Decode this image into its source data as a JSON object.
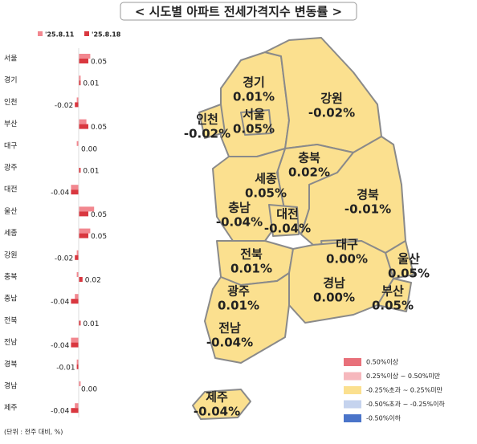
{
  "title": "< 시도별 아파트 전세가격지수 변동률 >",
  "chart_data": [
    {
      "type": "bar",
      "orientation": "horizontal",
      "categories": [
        "서울",
        "경기",
        "인천",
        "부산",
        "대구",
        "광주",
        "대전",
        "울산",
        "세종",
        "강원",
        "충북",
        "충남",
        "전북",
        "전남",
        "경북",
        "경남",
        "제주"
      ],
      "series": [
        {
          "name": "'25.8.11",
          "color": "#f2878f",
          "values": [
            0.06,
            0.01,
            -0.01,
            0.04,
            -0.01,
            0.0,
            -0.04,
            0.08,
            0.06,
            -0.01,
            -0.01,
            -0.02,
            0.0,
            -0.04,
            -0.01,
            0.01,
            -0.02
          ]
        },
        {
          "name": "'25.8.18",
          "color": "#d9373f",
          "values": [
            0.05,
            0.01,
            -0.02,
            0.05,
            0.0,
            0.01,
            -0.04,
            0.05,
            0.05,
            -0.02,
            0.02,
            -0.04,
            0.01,
            -0.04,
            -0.01,
            0.0,
            -0.04
          ],
          "value_labels": [
            "0.05",
            "0.01",
            "-0.02",
            "0.05",
            "0.00",
            "0.01",
            "-0.04",
            "0.05",
            "0.05",
            "-0.02",
            "0.02",
            "-0.04",
            "0.01",
            "-0.04",
            "-0.01",
            "0.00",
            "-0.04"
          ]
        }
      ],
      "xlim": [
        -0.2,
        0.2
      ],
      "note": "(단위 : 전주 대비, %)"
    },
    {
      "type": "map",
      "categories": [
        "경기",
        "강원",
        "인천",
        "서울",
        "충북",
        "세종",
        "충남",
        "대전",
        "경북",
        "대구",
        "울산",
        "전북",
        "경남",
        "부산",
        "광주",
        "전남",
        "제주"
      ],
      "values": [
        0.01,
        -0.02,
        -0.02,
        0.05,
        0.02,
        0.05,
        -0.04,
        -0.04,
        -0.01,
        0.0,
        0.05,
        0.01,
        0.0,
        0.05,
        0.01,
        -0.04,
        -0.04
      ],
      "value_labels": [
        "0.01%",
        "-0.02%",
        "-0.02%",
        "0.05%",
        "0.02%",
        "0.05%",
        "-0.04%",
        "-0.04%",
        "-0.01%",
        "0.00%",
        "0.05%",
        "0.01%",
        "0.00%",
        "0.05%",
        "0.01%",
        "-0.04%",
        "-0.04%"
      ],
      "color": "#fbe08f",
      "legend": [
        {
          "label": "0.50%이상",
          "color": "#e8707a"
        },
        {
          "label": "0.25%이상 ~ 0.50%미만",
          "color": "#f6b8bd"
        },
        {
          "label": "-0.25%초과 ~ 0.25%미만",
          "color": "#fbe08f"
        },
        {
          "label": "-0.50%초과 ~ -0.25%이하",
          "color": "#c5d3ee"
        },
        {
          "label": "-0.50%이하",
          "color": "#4a74c9"
        }
      ]
    }
  ]
}
